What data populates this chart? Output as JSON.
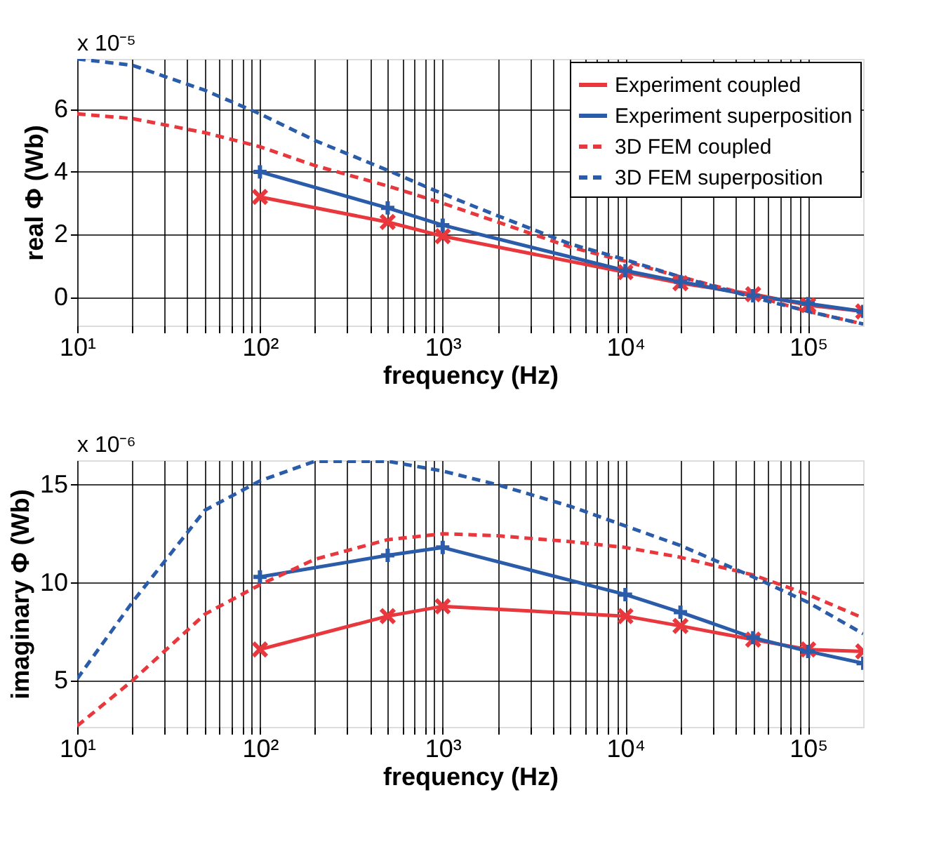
{
  "chart_data": [
    {
      "type": "line",
      "xlabel": "frequency (Hz)",
      "ylabel": "real Φ (Wb)",
      "annotations": [
        "x 10⁻⁵"
      ],
      "log": "x",
      "grid": true,
      "legend": "top right",
      "xlim": [
        10,
        200000
      ],
      "ylim": [
        -0.9,
        7.6
      ],
      "yticks": [
        0,
        2,
        4,
        6
      ],
      "xticks": [
        {
          "value": 10,
          "label": "10¹"
        },
        {
          "value": 20,
          "label": null
        },
        {
          "value": 30,
          "label": null
        },
        {
          "value": 40,
          "label": null
        },
        {
          "value": 50,
          "label": null
        },
        {
          "value": 60,
          "label": null
        },
        {
          "value": 70,
          "label": null
        },
        {
          "value": 80,
          "label": null
        },
        {
          "value": 90,
          "label": null
        },
        {
          "value": 100,
          "label": "10²"
        },
        {
          "value": 200,
          "label": null
        },
        {
          "value": 300,
          "label": null
        },
        {
          "value": 400,
          "label": null
        },
        {
          "value": 500,
          "label": null
        },
        {
          "value": 600,
          "label": null
        },
        {
          "value": 700,
          "label": null
        },
        {
          "value": 800,
          "label": null
        },
        {
          "value": 900,
          "label": null
        },
        {
          "value": 1000,
          "label": "10³"
        },
        {
          "value": 2000,
          "label": null
        },
        {
          "value": 3000,
          "label": null
        },
        {
          "value": 4000,
          "label": null
        },
        {
          "value": 5000,
          "label": null
        },
        {
          "value": 6000,
          "label": null
        },
        {
          "value": 7000,
          "label": null
        },
        {
          "value": 8000,
          "label": null
        },
        {
          "value": 9000,
          "label": null
        },
        {
          "value": 10000,
          "label": "10⁴"
        },
        {
          "value": 20000,
          "label": null
        },
        {
          "value": 30000,
          "label": null
        },
        {
          "value": 40000,
          "label": null
        },
        {
          "value": 50000,
          "label": null
        },
        {
          "value": 60000,
          "label": null
        },
        {
          "value": 70000,
          "label": null
        },
        {
          "value": 80000,
          "label": null
        },
        {
          "value": 90000,
          "label": null
        },
        {
          "value": 100000,
          "label": "10⁵"
        }
      ],
      "series": [
        {
          "name": "Experiment coupled",
          "color": "#e8383d",
          "marker": "x",
          "line_style": "solid",
          "x": [
            100,
            500,
            1000,
            10000,
            20000,
            50000,
            100000,
            200000
          ],
          "values": [
            3.2,
            2.4,
            1.95,
            0.8,
            0.45,
            0.1,
            -0.25,
            -0.45
          ]
        },
        {
          "name": "Experiment superposition",
          "color": "#2a5caa",
          "marker": "cross",
          "line_style": "solid",
          "x": [
            100,
            500,
            1000,
            10000,
            20000,
            50000,
            100000,
            200000
          ],
          "values": [
            4.0,
            2.85,
            2.3,
            0.85,
            0.5,
            0.05,
            -0.2,
            -0.45
          ]
        },
        {
          "name": "3D FEM coupled",
          "color": "#e8383d",
          "marker": "none",
          "line_style": "dashed",
          "x": [
            10,
            20,
            50,
            100,
            200,
            500,
            1000,
            2000,
            5000,
            10000,
            20000,
            50000,
            100000,
            200000
          ],
          "values": [
            5.85,
            5.7,
            5.25,
            4.8,
            4.2,
            3.55,
            3.0,
            2.4,
            1.6,
            1.15,
            0.65,
            0.05,
            -0.45,
            -0.85
          ]
        },
        {
          "name": "3D FEM superposition",
          "color": "#2a5caa",
          "marker": "none",
          "line_style": "dashed",
          "x": [
            10,
            20,
            50,
            100,
            200,
            500,
            1000,
            2000,
            5000,
            10000,
            20000,
            50000,
            100000,
            200000
          ],
          "values": [
            7.6,
            7.4,
            6.6,
            5.85,
            5.0,
            4.05,
            3.3,
            2.6,
            1.7,
            1.2,
            0.65,
            0.0,
            -0.45,
            -0.85
          ]
        }
      ]
    },
    {
      "type": "line",
      "xlabel": "frequency (Hz)",
      "ylabel": "imaginary Φ (Wb)",
      "annotations": [
        "x 10⁻⁶"
      ],
      "log": "x",
      "grid": true,
      "legend": false,
      "xlim": [
        10,
        200000
      ],
      "ylim": [
        2.65,
        16.25
      ],
      "yticks": [
        5,
        10,
        15
      ],
      "xticks": [
        {
          "value": 10,
          "label": "10¹"
        },
        {
          "value": 20,
          "label": null
        },
        {
          "value": 30,
          "label": null
        },
        {
          "value": 40,
          "label": null
        },
        {
          "value": 50,
          "label": null
        },
        {
          "value": 60,
          "label": null
        },
        {
          "value": 70,
          "label": null
        },
        {
          "value": 80,
          "label": null
        },
        {
          "value": 90,
          "label": null
        },
        {
          "value": 100,
          "label": "10²"
        },
        {
          "value": 200,
          "label": null
        },
        {
          "value": 300,
          "label": null
        },
        {
          "value": 400,
          "label": null
        },
        {
          "value": 500,
          "label": null
        },
        {
          "value": 600,
          "label": null
        },
        {
          "value": 700,
          "label": null
        },
        {
          "value": 800,
          "label": null
        },
        {
          "value": 900,
          "label": null
        },
        {
          "value": 1000,
          "label": "10³"
        },
        {
          "value": 2000,
          "label": null
        },
        {
          "value": 3000,
          "label": null
        },
        {
          "value": 4000,
          "label": null
        },
        {
          "value": 5000,
          "label": null
        },
        {
          "value": 6000,
          "label": null
        },
        {
          "value": 7000,
          "label": null
        },
        {
          "value": 8000,
          "label": null
        },
        {
          "value": 9000,
          "label": null
        },
        {
          "value": 10000,
          "label": "10⁴"
        },
        {
          "value": 20000,
          "label": null
        },
        {
          "value": 30000,
          "label": null
        },
        {
          "value": 40000,
          "label": null
        },
        {
          "value": 50000,
          "label": null
        },
        {
          "value": 60000,
          "label": null
        },
        {
          "value": 70000,
          "label": null
        },
        {
          "value": 80000,
          "label": null
        },
        {
          "value": 90000,
          "label": null
        },
        {
          "value": 100000,
          "label": "10⁵"
        }
      ],
      "series": [
        {
          "color": "#e8383d",
          "marker": "x",
          "line_style": "solid",
          "x": [
            100,
            500,
            1000,
            10000,
            20000,
            50000,
            100000,
            200000
          ],
          "values": [
            6.6,
            8.3,
            8.8,
            8.3,
            7.8,
            7.1,
            6.6,
            6.5
          ]
        },
        {
          "color": "#2a5caa",
          "marker": "cross",
          "line_style": "solid",
          "x": [
            100,
            500,
            1000,
            10000,
            20000,
            50000,
            100000,
            200000
          ],
          "values": [
            10.3,
            11.4,
            11.8,
            9.4,
            8.5,
            7.2,
            6.5,
            5.9
          ]
        },
        {
          "color": "#e8383d",
          "marker": "none",
          "line_style": "dashed",
          "x": [
            10,
            20,
            50,
            100,
            200,
            500,
            1000,
            2000,
            5000,
            10000,
            20000,
            50000,
            100000,
            200000
          ],
          "values": [
            2.7,
            5.0,
            8.4,
            9.9,
            11.2,
            12.2,
            12.5,
            12.4,
            12.1,
            11.8,
            11.3,
            10.4,
            9.4,
            8.2
          ]
        },
        {
          "color": "#2a5caa",
          "marker": "none",
          "line_style": "dashed",
          "x": [
            10,
            20,
            50,
            100,
            200,
            500,
            1000,
            2000,
            5000,
            10000,
            20000,
            50000,
            100000,
            200000
          ],
          "values": [
            5.1,
            9.0,
            13.7,
            15.2,
            16.2,
            16.2,
            15.7,
            15.0,
            13.9,
            12.9,
            11.9,
            10.3,
            9.0,
            7.4
          ]
        }
      ]
    }
  ]
}
